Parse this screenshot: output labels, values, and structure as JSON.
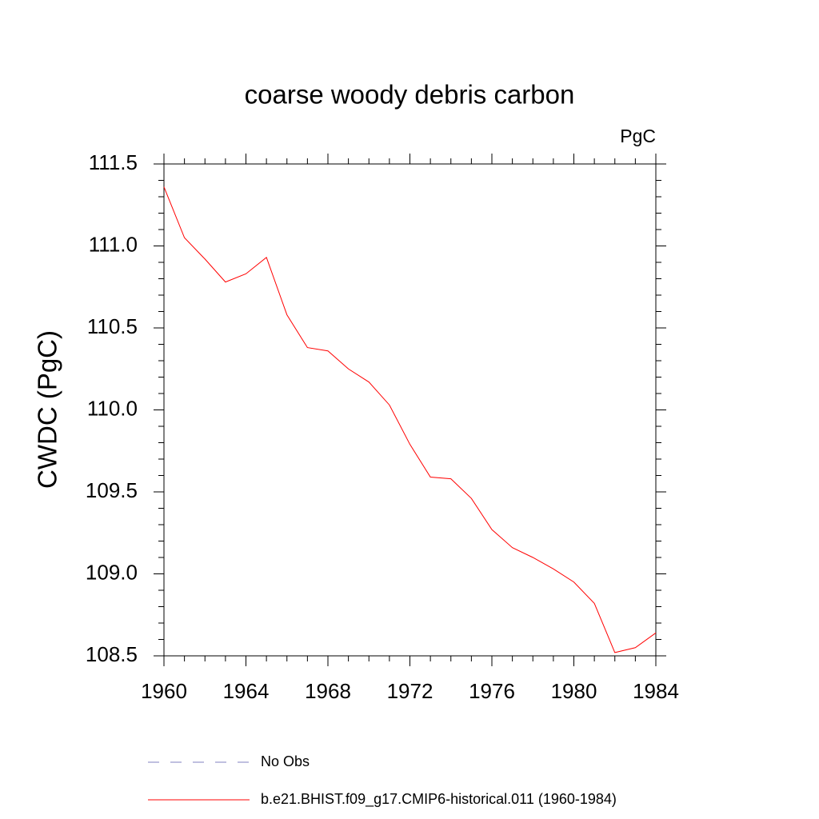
{
  "chart_data": {
    "type": "line",
    "title": "coarse woody debris carbon",
    "units": "PgC",
    "ylabel": "CWDC  (PgC)",
    "x": [
      1960,
      1961,
      1962,
      1963,
      1964,
      1965,
      1966,
      1967,
      1968,
      1969,
      1970,
      1971,
      1972,
      1973,
      1974,
      1975,
      1976,
      1977,
      1978,
      1979,
      1980,
      1981,
      1982,
      1983,
      1984
    ],
    "series": [
      {
        "name": "b.e21.BHIST.f09_g17.CMIP6-historical.011 (1960-1984)",
        "color": "#ff0000",
        "values": [
          111.36,
          111.05,
          110.92,
          110.78,
          110.83,
          110.93,
          110.58,
          110.38,
          110.36,
          110.25,
          110.17,
          110.03,
          109.79,
          109.59,
          109.58,
          109.46,
          109.27,
          109.16,
          109.1,
          109.03,
          108.95,
          108.82,
          108.52,
          108.55,
          108.64
        ]
      }
    ],
    "obs_legend": {
      "name": "No Obs",
      "color": "#8080c0",
      "dashed": true
    },
    "xlim": [
      1960,
      1984
    ],
    "xticks": [
      1960,
      1964,
      1968,
      1972,
      1976,
      1980,
      1984
    ],
    "xminorticks": [
      1960,
      1961,
      1962,
      1963,
      1964,
      1965,
      1966,
      1967,
      1968,
      1969,
      1970,
      1971,
      1972,
      1973,
      1974,
      1975,
      1976,
      1977,
      1978,
      1979,
      1980,
      1981,
      1982,
      1983,
      1984
    ],
    "ylim": [
      108.5,
      111.5
    ],
    "yticks": [
      {
        "value": 108.5,
        "label": "108.5"
      },
      {
        "value": 109,
        "label": "109.0"
      },
      {
        "value": 109.5,
        "label": "109.5"
      },
      {
        "value": 110,
        "label": "110.0"
      },
      {
        "value": 110.5,
        "label": "110.5"
      },
      {
        "value": 111,
        "label": "111.0"
      },
      {
        "value": 111.5,
        "label": "111.5"
      }
    ],
    "yminorticks": [
      108.5,
      108.6,
      108.7,
      108.8,
      108.9,
      109.0,
      109.1,
      109.2,
      109.3,
      109.4,
      109.5,
      109.6,
      109.7,
      109.8,
      109.9,
      110.0,
      110.1,
      110.2,
      110.3,
      110.4,
      110.5,
      110.6,
      110.7,
      110.8,
      110.9,
      111.0,
      111.1,
      111.2,
      111.3,
      111.4,
      111.5
    ]
  }
}
